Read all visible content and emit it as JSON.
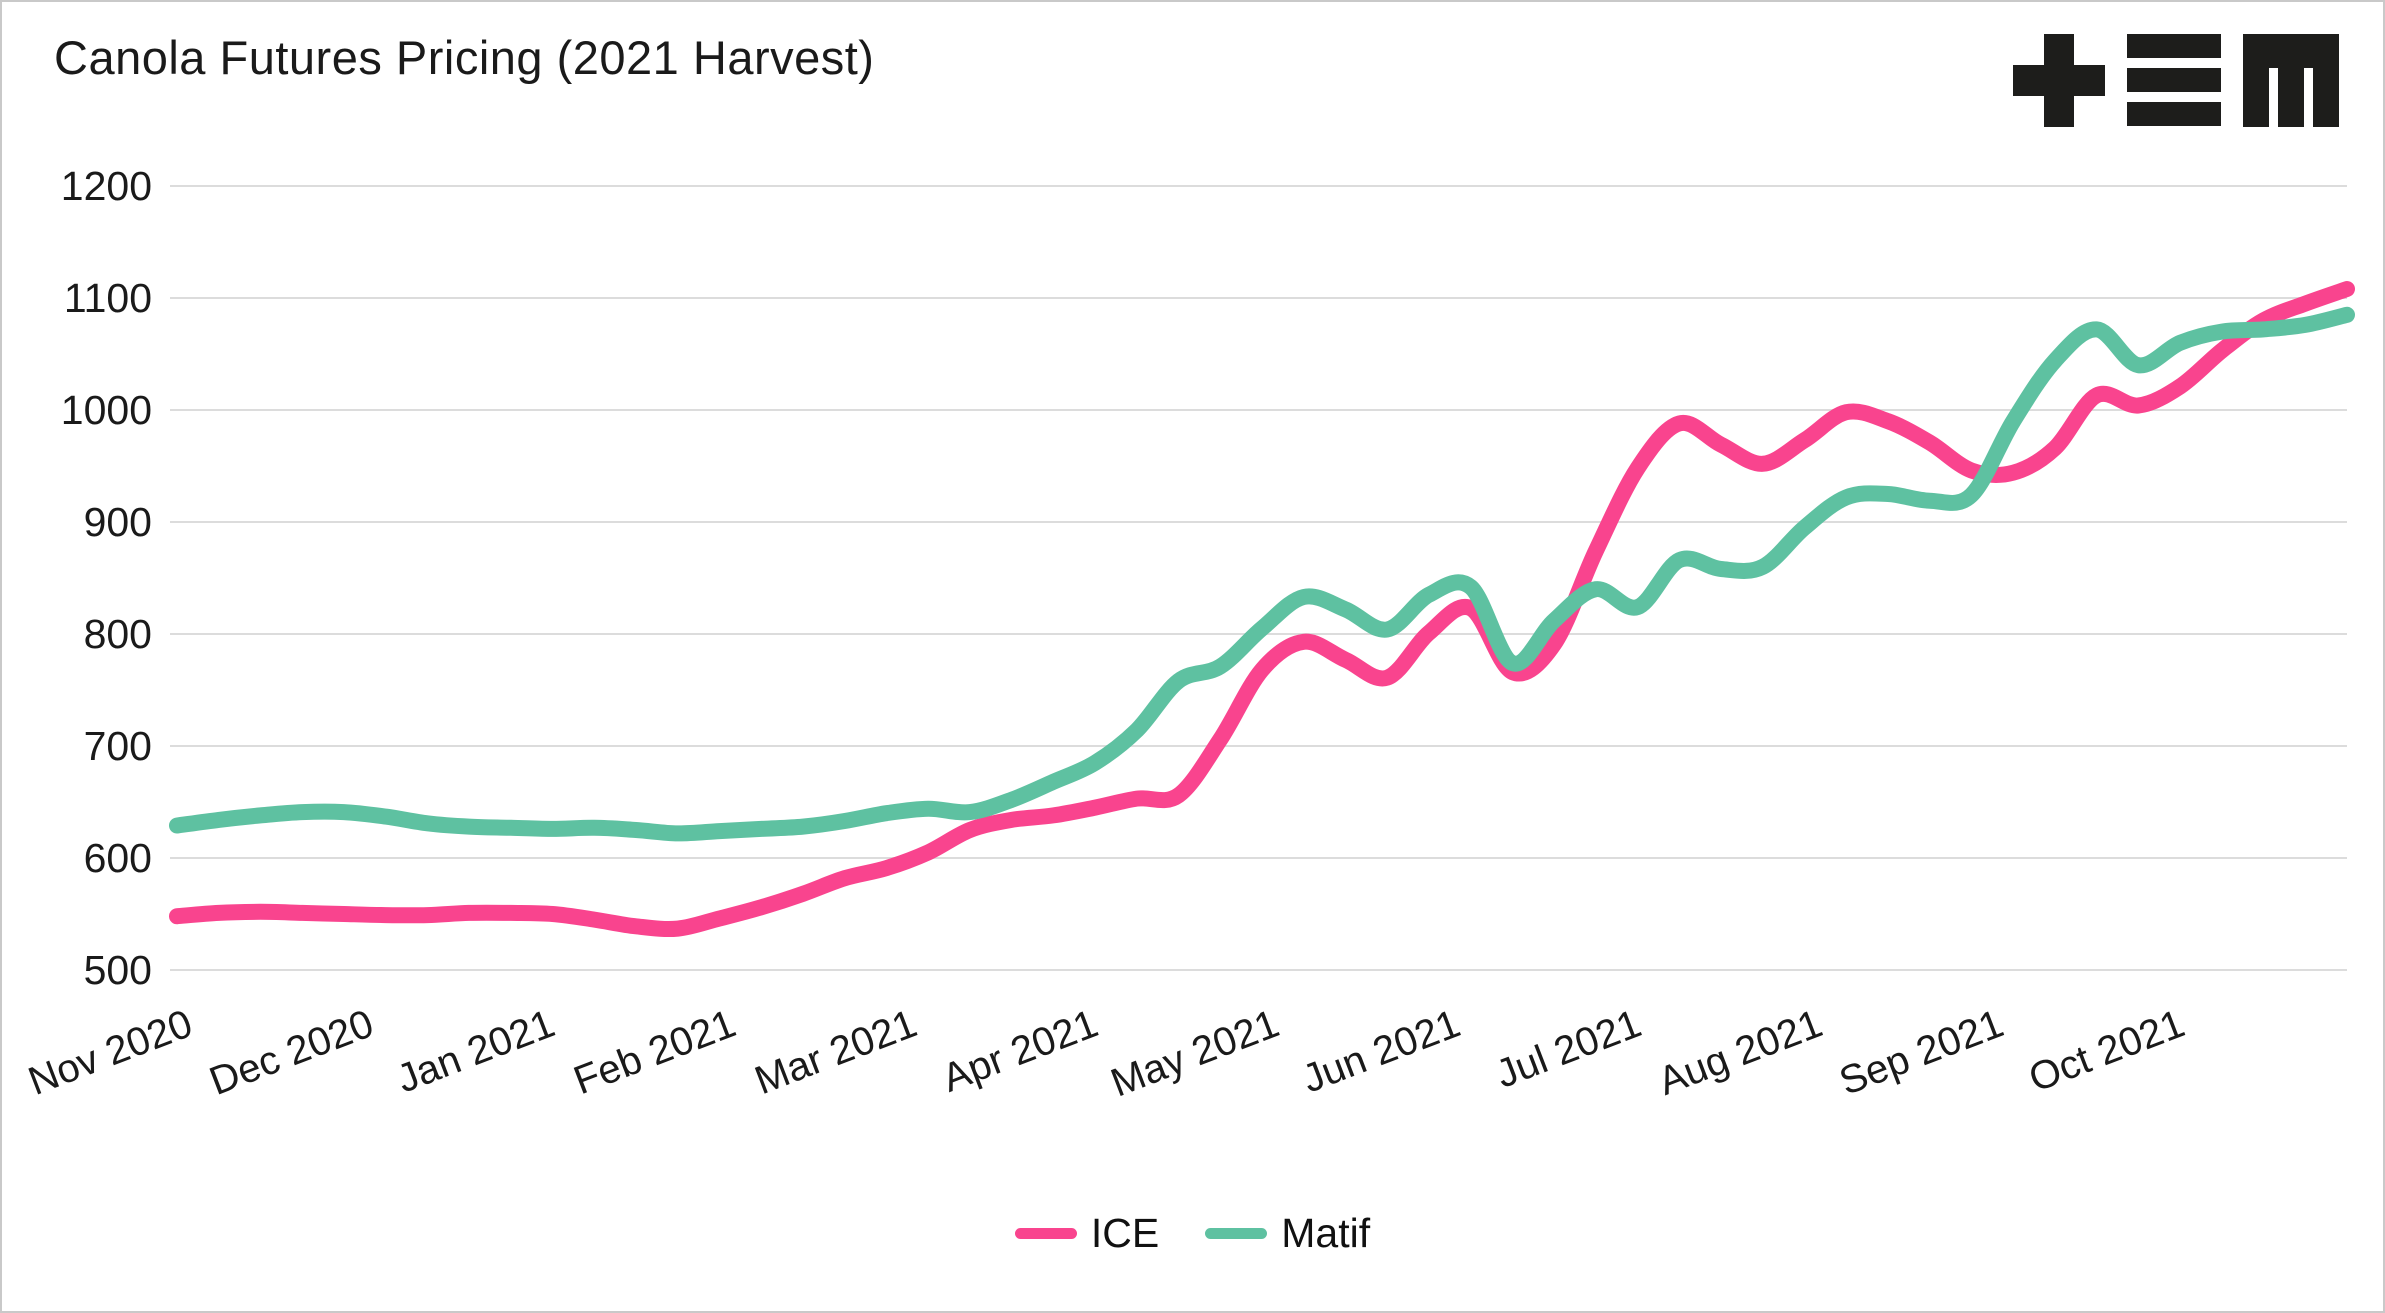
{
  "window": {
    "background": "#ffffff",
    "frame_color": "#c9c9c9"
  },
  "header": {
    "title": "Canola Futures Pricing (2021 Harvest)",
    "logo": {
      "name": "plus-triple-bar-m-logo",
      "color": "#1d1d1b"
    }
  },
  "legend": {
    "items": [
      {
        "label": "ICE",
        "color": "#f9448e"
      },
      {
        "label": "Matif",
        "color": "#5ec1a1"
      }
    ]
  },
  "axis_colors": {
    "gridline": "#dcdcdc",
    "tick_text": "#1a1a1a"
  },
  "chart_data": {
    "type": "line",
    "title": "Canola Futures Pricing (2021 Harvest)",
    "xlabel": "",
    "ylabel": "",
    "ylim": [
      500,
      1200
    ],
    "y_ticks": [
      1200,
      1100,
      1000,
      900,
      800,
      700,
      600,
      500
    ],
    "x_tick_labels": [
      "Nov 2020",
      "Dec 2020",
      "Jan 2021",
      "Feb 2021",
      "Mar 2021",
      "Apr 2021",
      "May 2021",
      "Jun 2021",
      "Jul 2021",
      "Aug 2021",
      "Sep 2021",
      "Oct 2021"
    ],
    "x_tick_rotation_deg": -21,
    "grid": "horizontal",
    "legend_position": "bottom",
    "sampling": "weekly points, Nov 2020 through end of Oct 2021",
    "line_width": 16,
    "series": [
      {
        "name": "ICE",
        "color": "#f9448e",
        "values": [
          548,
          551,
          552,
          551,
          550,
          549,
          549,
          551,
          551,
          550,
          545,
          539,
          537,
          546,
          556,
          568,
          582,
          591,
          605,
          625,
          634,
          638,
          645,
          653,
          656,
          706,
          768,
          793,
          777,
          761,
          801,
          823,
          766,
          791,
          874,
          948,
          988,
          969,
          952,
          973,
          998,
          990,
          971,
          946,
          944,
          966,
          1013,
          1004,
          1021,
          1053,
          1080,
          1095,
          1108
        ]
      },
      {
        "name": "Matif",
        "color": "#5ec1a1",
        "values": [
          629,
          634,
          638,
          641,
          641,
          637,
          631,
          628,
          627,
          626,
          627,
          625,
          622,
          624,
          626,
          628,
          633,
          640,
          644,
          641,
          652,
          668,
          685,
          714,
          758,
          771,
          805,
          833,
          822,
          804,
          835,
          842,
          774,
          812,
          840,
          824,
          866,
          858,
          860,
          895,
          922,
          925,
          919,
          924,
          990,
          1044,
          1072,
          1040,
          1060,
          1070,
          1072,
          1076,
          1085
        ]
      }
    ]
  }
}
